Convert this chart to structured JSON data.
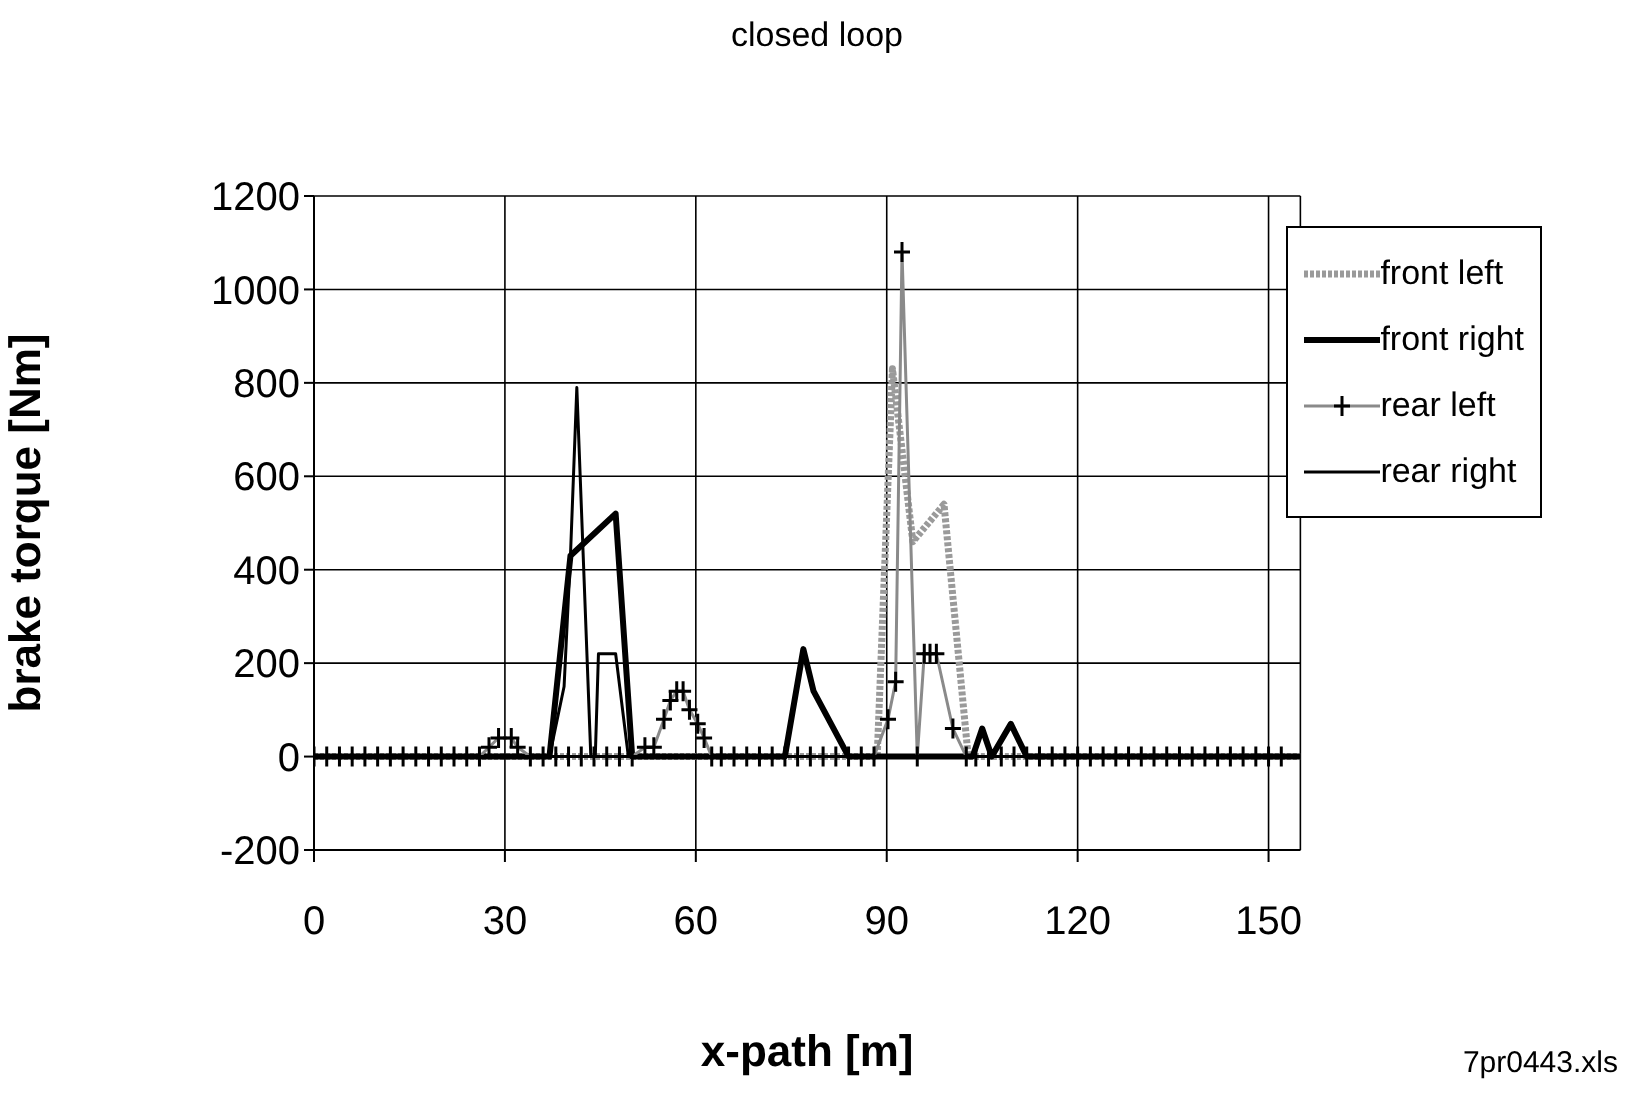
{
  "chart_data": {
    "type": "line",
    "title": "closed loop",
    "xlabel": "x-path [m]",
    "ylabel": "brake torque [Nm]",
    "xlim": [
      0,
      155
    ],
    "xticks": [
      0,
      30,
      60,
      90,
      120,
      150
    ],
    "ylim": [
      -200,
      1200
    ],
    "yticks": [
      -200,
      0,
      200,
      400,
      600,
      800,
      1000,
      1200
    ],
    "grid": true,
    "legend": "top right",
    "annotations": [
      "7pr0443.xls"
    ],
    "series": [
      {
        "name": "front left",
        "color": "#9a9a9a",
        "line_style": "dotted",
        "marker": "none",
        "x": [
          0,
          88.5,
          90.9,
          94.1,
          99,
          102.8,
          155
        ],
        "values": [
          0,
          0,
          830,
          460,
          540,
          0,
          0
        ]
      },
      {
        "name": "front right",
        "color": "#000000",
        "marker": "none",
        "x": [
          0,
          37,
          40.3,
          47.4,
          50,
          74,
          76.9,
          78.5,
          84,
          103.5,
          105,
          106.5,
          109.5,
          112,
          155
        ],
        "values": [
          0,
          0,
          430,
          520,
          0,
          0,
          230,
          140,
          0,
          0,
          60,
          0,
          70,
          0,
          0
        ]
      },
      {
        "name": "rear left",
        "color": "#8a8a8a",
        "marker": "cross",
        "x": [
          0,
          2,
          4,
          6,
          8,
          10,
          12,
          14,
          16,
          18,
          20,
          22,
          24,
          26,
          27.5,
          29,
          31,
          32,
          34,
          36,
          38,
          40,
          42,
          44,
          46,
          48,
          50,
          52,
          53.4,
          55,
          56,
          57,
          58,
          59,
          60.3,
          61.3,
          62.5,
          64,
          66,
          68,
          70,
          72,
          74,
          76,
          78,
          80,
          82,
          84,
          86,
          88,
          90.2,
          91.4,
          92.4,
          94.8,
          95.9,
          96.8,
          97.8,
          100.4,
          102.5,
          104,
          106,
          108,
          110,
          112,
          114,
          116,
          118,
          120,
          122,
          124,
          126,
          128,
          130,
          132,
          134,
          136,
          138,
          140,
          142,
          144,
          146,
          148,
          150,
          152
        ],
        "values": [
          0,
          0,
          0,
          0,
          0,
          0,
          0,
          0,
          0,
          0,
          0,
          0,
          0,
          0,
          20,
          40,
          40,
          20,
          0,
          0,
          0,
          0,
          0,
          0,
          0,
          0,
          0,
          20,
          20,
          80,
          120,
          140,
          140,
          100,
          70,
          40,
          0,
          0,
          0,
          0,
          0,
          0,
          0,
          0,
          0,
          0,
          0,
          0,
          0,
          0,
          80,
          160,
          1080,
          0,
          220,
          220,
          220,
          60,
          0,
          0,
          0,
          0,
          0,
          0,
          0,
          0,
          0,
          0,
          0,
          0,
          0,
          0,
          0,
          0,
          0,
          0,
          0,
          0,
          0,
          0,
          0,
          0,
          0,
          0
        ]
      },
      {
        "name": "rear right",
        "color": "#000000",
        "marker": "none",
        "x": [
          0,
          37,
          39.3,
          40.3,
          41.3,
          43.5,
          44.2,
          44.7,
          47.4,
          49.4,
          155
        ],
        "values": [
          0,
          0,
          150,
          430,
          790,
          0,
          0,
          220,
          220,
          0,
          0
        ]
      }
    ]
  }
}
